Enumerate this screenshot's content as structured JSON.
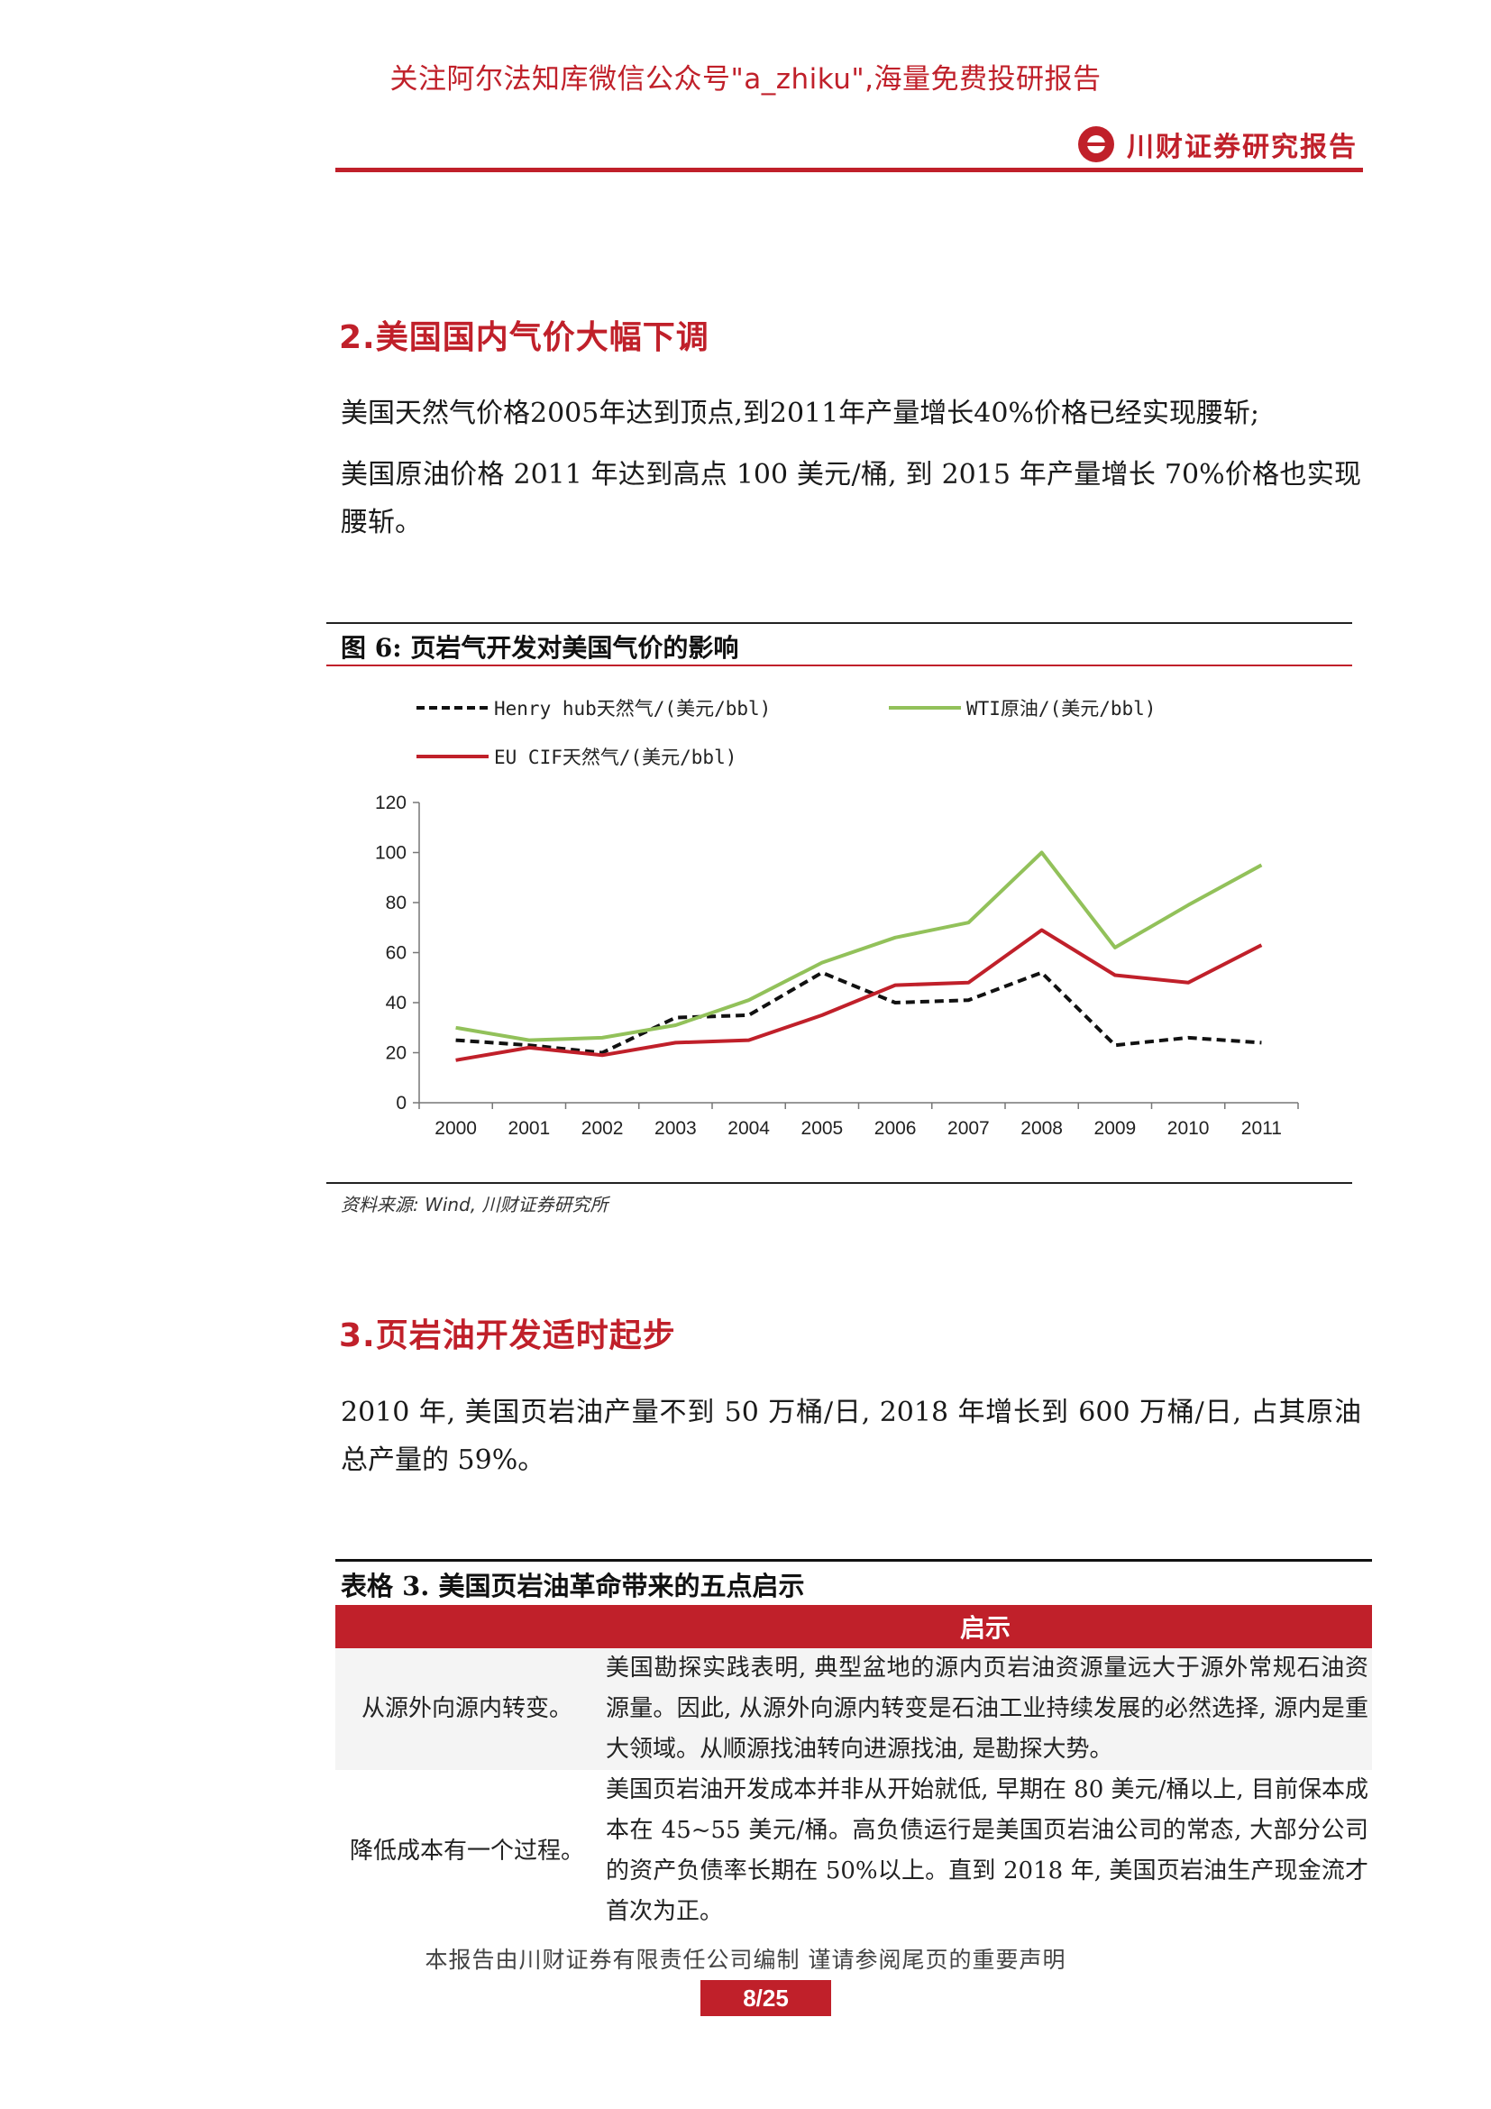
{
  "header": {
    "promo": "关注阿尔法知库微信公众号\"a_zhiku\",海量免费投研报告",
    "brand_name": "川财证券研究报告"
  },
  "section2": {
    "heading": "2.美国国内气价大幅下调",
    "para1": "美国天然气价格2005年达到顶点,到2011年产量增长40%价格已经实现腰斩;",
    "para2": "美国原油价格 2011 年达到高点 100 美元/桶, 到 2015 年产量增长 70%价格也实现腰斩。"
  },
  "figure": {
    "caption": "图 6: 页岩气开发对美国气价的影响",
    "source": "资料来源: Wind, 川财证券研究所"
  },
  "chart_data": {
    "type": "line",
    "x": [
      "2000",
      "2001",
      "2002",
      "2003",
      "2004",
      "2005",
      "2006",
      "2007",
      "2008",
      "2009",
      "2010",
      "2011"
    ],
    "ylim": [
      0,
      120
    ],
    "yticks": [
      "0",
      "20",
      "40",
      "60",
      "80",
      "100",
      "120"
    ],
    "grid": false,
    "legend_position": "top",
    "series": [
      {
        "name": "Henry hub天然气/(美元/bbl)",
        "color": "#111111",
        "style": "dashed",
        "values": [
          25,
          23,
          20,
          34,
          35,
          52,
          40,
          41,
          52,
          23,
          26,
          24
        ]
      },
      {
        "name": "WTI原油/(美元/bbl)",
        "color": "#92c15a",
        "style": "solid",
        "values": [
          30,
          25,
          26,
          31,
          41,
          56,
          66,
          72,
          100,
          62,
          79,
          95
        ]
      },
      {
        "name": "EU CIF天然气/(美元/bbl)",
        "color": "#c0202a",
        "style": "solid",
        "values": [
          17,
          22,
          19,
          24,
          25,
          35,
          47,
          48,
          69,
          51,
          48,
          63
        ]
      }
    ]
  },
  "section3": {
    "heading": "3.页岩油开发适时起步",
    "para1": "2010 年, 美国页岩油产量不到 50 万桶/日, 2018 年增长到 600 万桶/日, 占其原油总产量的 59%。"
  },
  "table": {
    "title": "表格 3. 美国页岩油革命带来的五点启示",
    "header": "启示",
    "rows": [
      {
        "left": "从源外向源内转变。",
        "right": "美国勘探实践表明, 典型盆地的源内页岩油资源量远大于源外常规石油资源量。因此, 从源外向源内转变是石油工业持续发展的必然选择, 源内是重大领域。从顺源找油转向进源找油, 是勘探大势。"
      },
      {
        "left": "降低成本有一个过程。",
        "right": "美国页岩油开发成本并非从开始就低, 早期在 80 美元/桶以上, 目前保本成本在 45~55 美元/桶。高负债运行是美国页岩油公司的常态, 大部分公司的资产负债率长期在 50%以上。直到 2018 年, 美国页岩油生产现金流才首次为正。"
      }
    ]
  },
  "footer": {
    "disclaimer": "本报告由川财证券有限责任公司编制  谨请参阅尾页的重要声明",
    "page": "8/25"
  }
}
